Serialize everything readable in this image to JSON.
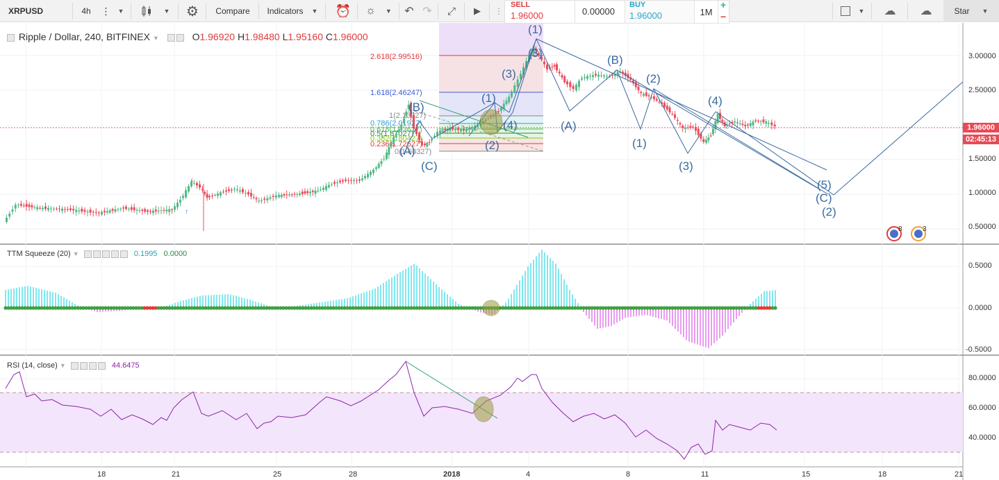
{
  "toolbar": {
    "symbol": "XRPUSD",
    "interval": "4h",
    "compare": "Compare",
    "indicators": "Indicators",
    "sell_label": "SELL",
    "sell_value": "1.96000",
    "spread": "0.00000",
    "buy_label": "BUY",
    "buy_value": "1.96000",
    "quantity": "1M",
    "plus": "+",
    "minus": "−",
    "star": "Star"
  },
  "main_pane": {
    "title": "Ripple / Dollar, 240, BITFINEX",
    "open_label": "O",
    "open": "1.96920",
    "high_label": "H",
    "high": "1.98480",
    "low_label": "L",
    "low": "1.95160",
    "close_label": "C",
    "close": "1.96000",
    "price_tag": "1.96000",
    "countdown_tag": "02:45:13",
    "badge_1": "8",
    "badge_2": "3",
    "price_axis": [
      "3.00000",
      "2.50000",
      "2.00000",
      "1.50000",
      "1.00000",
      "0.50000"
    ]
  },
  "fib_levels": [
    {
      "label": "2.618(2.99516)",
      "color": "#e03a3a"
    },
    {
      "label": "1.618(2.46247)",
      "color": "#3b5bdb"
    },
    {
      "label": "1(2.13327)",
      "color": "#888888"
    },
    {
      "label": "0.786(2.01927)",
      "color": "#2a9fd6"
    },
    {
      "label": "0.618(1.93627)",
      "color": "#40c057"
    },
    {
      "label": "0.5(1.87027)",
      "color": "#2b8a3e"
    },
    {
      "label": "0.382(1.80427)",
      "color": "#82c91e"
    },
    {
      "label": "0.236(1.72627)",
      "color": "#e03a3a"
    },
    {
      "label": "0(1.60327)",
      "color": "#888888"
    }
  ],
  "wave_labels": {
    "w1_top": "(1)",
    "wA_top": "(A)",
    "wB_top": "(B)",
    "wC_top": "(C)",
    "w1_small": "(1)",
    "w2_small": "(2)",
    "w3_small": "(3)",
    "w4_small": "(4)",
    "w3_mid": "(3)",
    "wA_right": "(A)",
    "wB_right": "(B)",
    "w1_right": "(1)",
    "w2_right": "(2)",
    "w3_right": "(3)",
    "w4_right": "(4)",
    "w5_proj": "(5)",
    "wC_proj": "(C)",
    "w2_proj": "(2)"
  },
  "ttm_pane": {
    "title": "TTM Squeeze (20)",
    "value1": "0.1995",
    "value2": "0.0000",
    "axis": [
      "0.5000",
      "0.0000",
      "-0.5000"
    ]
  },
  "rsi_pane": {
    "title": "RSI (14, close)",
    "value": "44.6475",
    "axis": [
      "80.0000",
      "60.0000",
      "40.0000"
    ]
  },
  "time_axis": [
    "18",
    "21",
    "25",
    "28",
    "2018",
    "4",
    "8",
    "11",
    "15",
    "18",
    "21"
  ],
  "colors": {
    "up": "#53b987",
    "down": "#eb4d5c",
    "wave": "#3a6aa0",
    "rsi": "#8e24aa",
    "rsi_band": "#f3e5fb",
    "ttm_pos": "#7ee8ef",
    "ttm_neg": "#e89cf0",
    "dot": "#3f9f3f"
  }
}
